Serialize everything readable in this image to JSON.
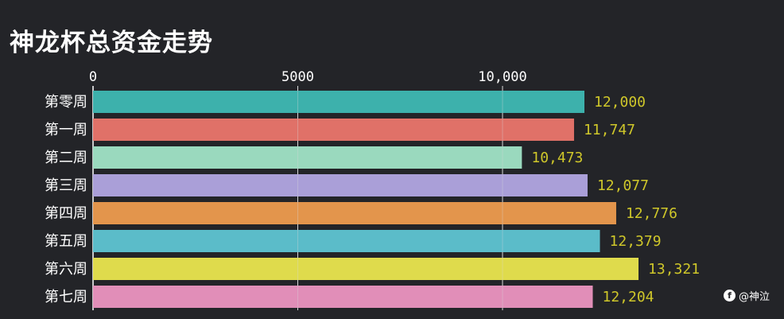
{
  "page": {
    "background": "#232428"
  },
  "title": "神龙杯总资金走势",
  "watermark": {
    "icon": "f-logo-icon",
    "text": "@神泣"
  },
  "chart_data": {
    "type": "bar",
    "orientation": "horizontal",
    "title": "神龙杯总资金走势",
    "xlim": [
      0,
      13321
    ],
    "x_ticks": [
      {
        "value": 0,
        "label": "0"
      },
      {
        "value": 5000,
        "label": "5000"
      },
      {
        "value": 10000,
        "label": "10,000"
      }
    ],
    "grid": true,
    "categories": [
      "第零周",
      "第一周",
      "第二周",
      "第三周",
      "第四周",
      "第五周",
      "第六周",
      "第七周"
    ],
    "values": [
      12000,
      11747,
      10473,
      12077,
      12776,
      12379,
      13321,
      12204
    ],
    "value_labels": [
      "12,000",
      "11,747",
      "10,473",
      "12,077",
      "12,776",
      "12,379",
      "13,321",
      "12,204"
    ],
    "colors": [
      "#3db1ac",
      "#e07168",
      "#9ad9be",
      "#aa9fd8",
      "#e3954c",
      "#5bbcc9",
      "#dfdb4c",
      "#e18eb8"
    ],
    "label_color": "#cfc72a",
    "tick_color": "#ffffff",
    "grid_color": "#d8d8d8"
  }
}
